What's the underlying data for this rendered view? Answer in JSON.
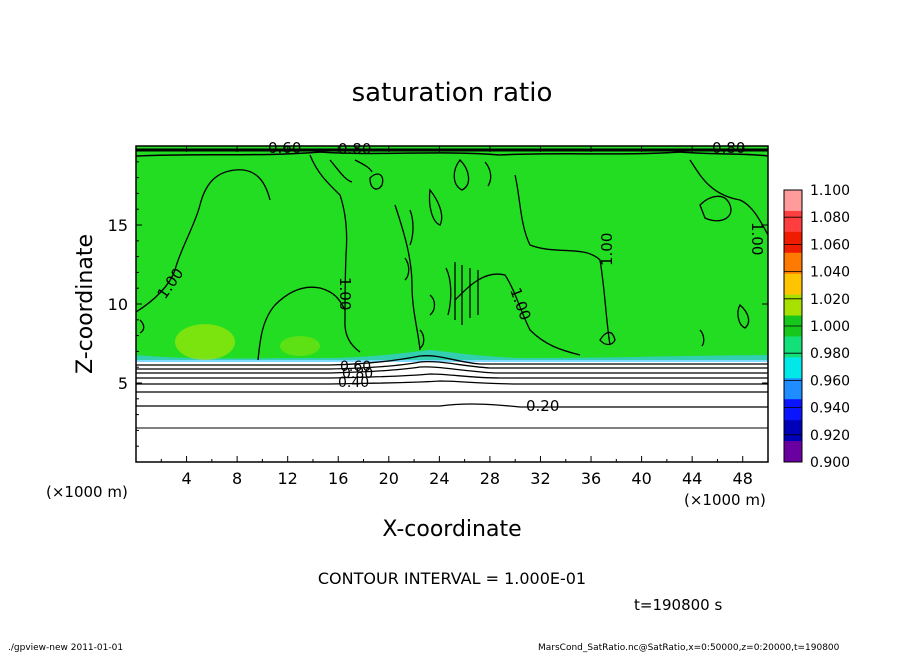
{
  "chart_data": {
    "type": "heatmap",
    "title": "saturation ratio",
    "xlabel": "X-coordinate",
    "ylabel": "Z-coordinate",
    "x_unit": "(×1000 m)",
    "z_unit": "(×1000 m)",
    "xlim": [
      0,
      50
    ],
    "zlim": [
      0,
      20
    ],
    "x_ticks": [
      "4",
      "8",
      "12",
      "16",
      "20",
      "24",
      "28",
      "32",
      "36",
      "40",
      "44",
      "48"
    ],
    "z_ticks": [
      "5",
      "10",
      "15"
    ],
    "colorbar": {
      "labels": [
        "1.100",
        "1.080",
        "1.060",
        "1.040",
        "1.020",
        "1.000",
        "0.980",
        "0.960",
        "0.940",
        "0.920",
        "0.900"
      ],
      "colors": [
        "#ff9b9b",
        "#ff3f3f",
        "#f01c00",
        "#ff7a00",
        "#ffc400",
        "#a8e000",
        "#17c81c",
        "#14e07a",
        "#00e8e8",
        "#1f8cff",
        "#0a14ff",
        "#0000b8",
        "#6a00a0"
      ]
    },
    "contour_interval_text": "CONTOUR INTERVAL = 1.000E-01",
    "contour_labels": [
      "0.60",
      "0.80",
      "0.80",
      "1.00",
      "1.00",
      "1.00",
      "1.00",
      "1.00",
      "0.60",
      "0.80",
      "0.40",
      "0.20"
    ],
    "time_text": "t=190800 s",
    "footer_left": "./gpview-new   2011-01-01",
    "footer_right": "MarsCond_SatRatio.nc@SatRatio,x=0:50000,z=0:20000,t=190800",
    "background_colors": {
      "saturated": "#22dd22",
      "below": "#ffffff"
    }
  }
}
